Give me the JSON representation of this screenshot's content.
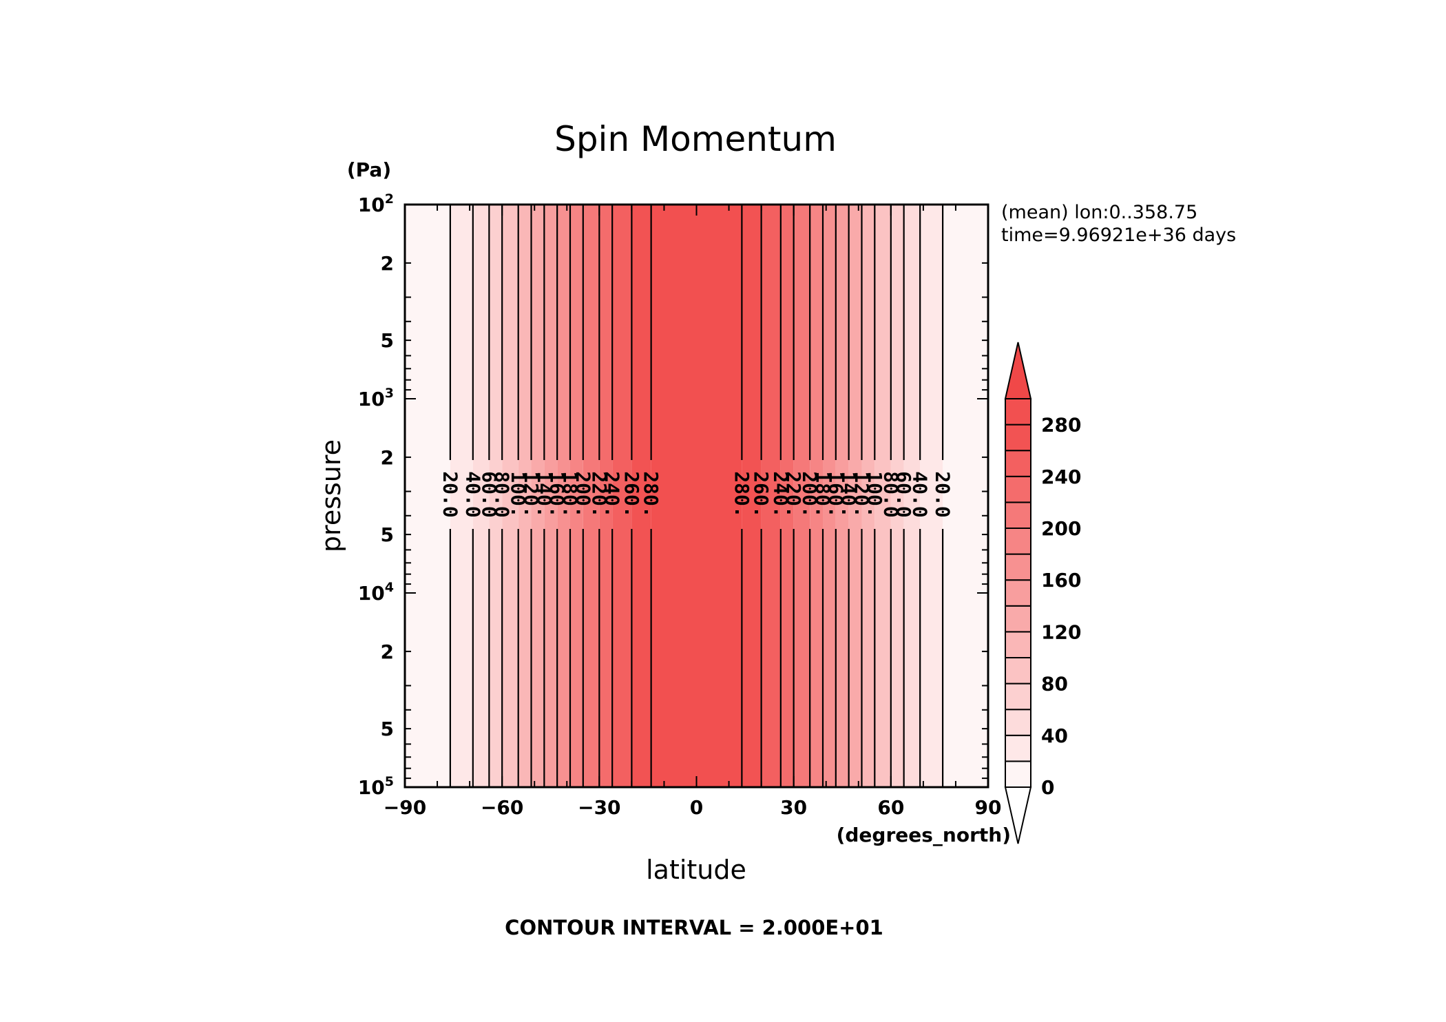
{
  "chart_data": {
    "type": "heatmap",
    "title": "Spin Momentum",
    "xlabel": "latitude",
    "x_units": "(degrees_north)",
    "ylabel": "pressure",
    "y_units": "(Pa)",
    "xlim": [
      -90,
      90
    ],
    "ylim": [
      100000,
      100
    ],
    "y_scale": "log",
    "x_ticks": [
      "−90",
      "−60",
      "−30",
      "0",
      "30",
      "60",
      "90"
    ],
    "x_tick_values": [
      -90,
      -60,
      -30,
      0,
      30,
      60,
      90
    ],
    "y_major_ticks": [
      {
        "value": 100,
        "base": "10",
        "exp": "2"
      },
      {
        "value": 1000,
        "base": "10",
        "exp": "3"
      },
      {
        "value": 10000,
        "base": "10",
        "exp": "4"
      },
      {
        "value": 100000,
        "base": "10",
        "exp": "5"
      }
    ],
    "y_minor_labels": [
      "2",
      "5"
    ],
    "annotations": [
      "(mean) lon:0..358.75",
      "time=9.96921e+36 days"
    ],
    "contour_note": "CONTOUR INTERVAL = 2.000E+01",
    "contour_levels": [
      20,
      40,
      60,
      80,
      100,
      120,
      140,
      160,
      180,
      200,
      220,
      240,
      260,
      280
    ],
    "contour_labels": [
      "20.0",
      "40.0",
      "60.0",
      "80.0",
      "100.",
      "120.",
      "140.",
      "160.",
      "180.",
      "200.",
      "220.",
      "240.",
      "260.",
      "280."
    ],
    "contour_lat_south": [
      -76,
      -69,
      -64,
      -60,
      -55,
      -51,
      -47,
      -43,
      -39,
      -35,
      -30,
      -26,
      -20,
      -14
    ],
    "contour_lat_north": [
      14,
      20,
      26,
      30,
      35,
      39,
      43,
      47,
      51,
      55,
      60,
      64,
      69,
      76
    ],
    "colorbar": {
      "levels": [
        0,
        20,
        40,
        60,
        80,
        100,
        120,
        140,
        160,
        180,
        200,
        220,
        240,
        260,
        280
      ],
      "labels": [
        "0",
        "40",
        "80",
        "120",
        "160",
        "200",
        "240",
        "280"
      ],
      "label_values": [
        0,
        40,
        80,
        120,
        160,
        200,
        240,
        280
      ],
      "colors": [
        "#fef5f5",
        "#fee8e8",
        "#fddcdc",
        "#fcd0d0",
        "#fbc3c3",
        "#fab7b7",
        "#f9aaaa",
        "#f89e9e",
        "#f79191",
        "#f68585",
        "#f57979",
        "#f46c6c",
        "#f36060",
        "#f25353",
        "#f25050"
      ],
      "under_color": "#ffffff",
      "over_color": "#f04848"
    }
  }
}
